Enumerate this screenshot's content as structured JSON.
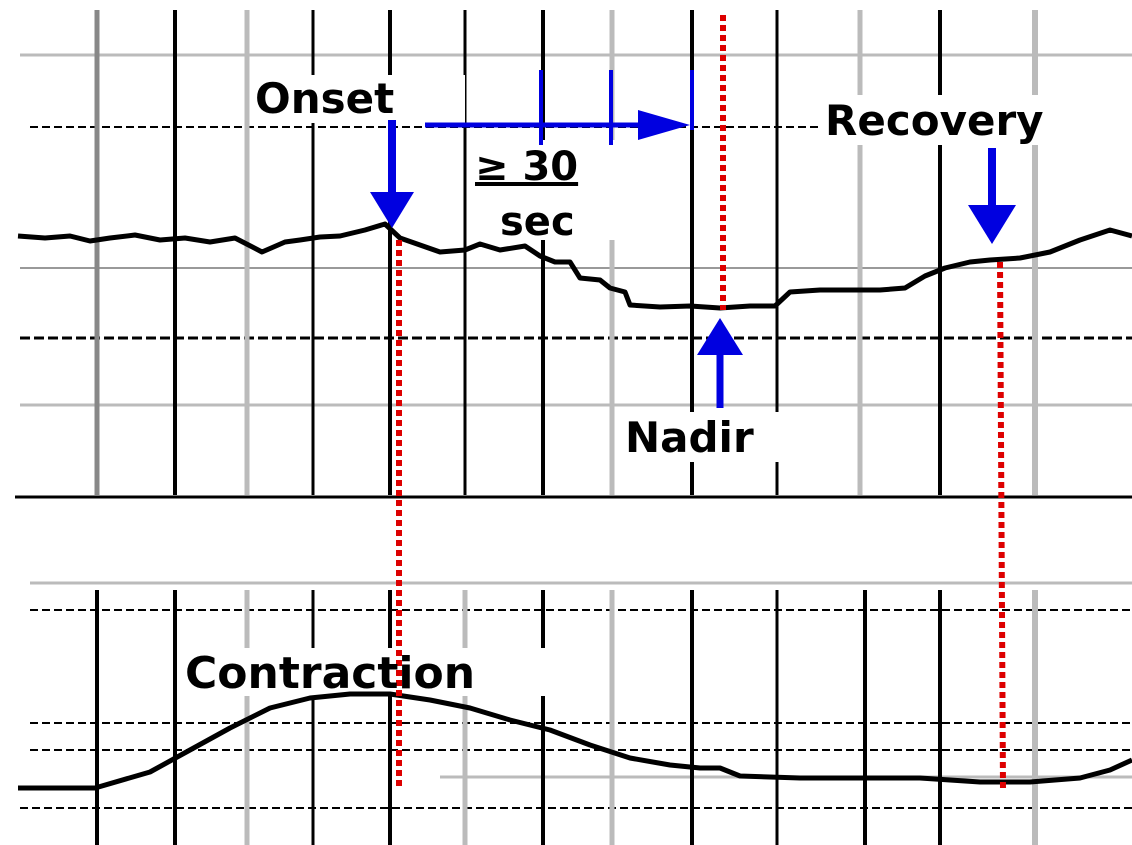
{
  "labels": {
    "onset": "Onset",
    "duration": "≥ 30",
    "duration_unit": "sec",
    "recovery": "Recovery",
    "nadir": "Nadir",
    "contraction": "Contraction"
  }
}
